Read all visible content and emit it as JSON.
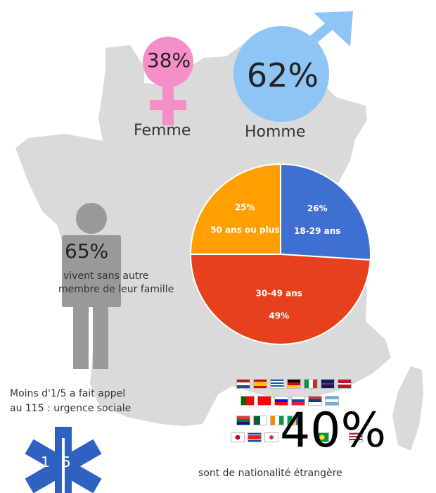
{
  "gender": {
    "female": {
      "percent": "38%",
      "label": "Femme",
      "color": "#f48fc8"
    },
    "male": {
      "percent": "62%",
      "label": "Homme",
      "color": "#8ec5f5"
    }
  },
  "age_chart": {
    "slices": [
      {
        "percent_label": "26%",
        "name": "18-29 ans",
        "value": 26,
        "color": "#3f6fd1"
      },
      {
        "percent_label": "49%",
        "name": "30-49 ans",
        "value": 49,
        "color": "#e6411c"
      },
      {
        "percent_label": "25%",
        "name": "50 ans ou plus",
        "value": 25,
        "color": "#ffa000"
      }
    ]
  },
  "alone": {
    "percent": "65%",
    "text_line1": "vivent sans autre",
    "text_line2": "membre de leur famille"
  },
  "emergency": {
    "line1": "Moins d'1/5 a fait appel",
    "line2": "au 115 : urgence sociale",
    "star_text_left": "1",
    "star_text_right": "5"
  },
  "foreign": {
    "percent": "40%",
    "caption": "sont de nationalité étrangère"
  },
  "colors": {
    "map": "#dadada",
    "person": "#999999",
    "star": "#2f62c0"
  }
}
